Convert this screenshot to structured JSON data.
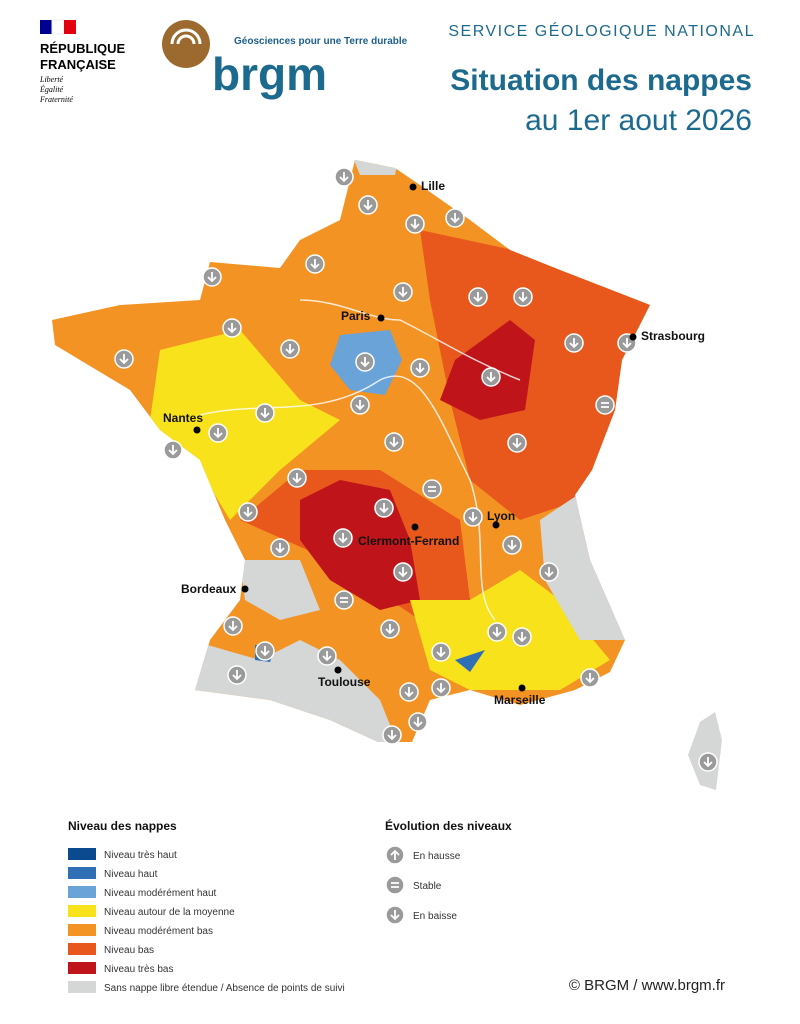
{
  "header": {
    "republic": [
      "RÉPUBLIQUE",
      "FRANÇAISE"
    ],
    "motto": [
      "Liberté",
      "Égalité",
      "Fraternité"
    ],
    "tagline": "Géosciences pour une Terre durable",
    "brand": "brgm",
    "service": "SERVICE GÉOLOGIQUE NATIONAL",
    "title": "Situation des nappes",
    "subtitle": "au 1er aout 2026"
  },
  "cities": [
    "Lille",
    "Paris",
    "Strasbourg",
    "Nantes",
    "Lyon",
    "Clermont-Ferrand",
    "Bordeaux",
    "Toulouse",
    "Marseille"
  ],
  "legend_levels": {
    "title": "Niveau des nappes",
    "items": [
      {
        "label": "Niveau très haut",
        "color": "#0b4a8f"
      },
      {
        "label": "Niveau haut",
        "color": "#2f6fb5"
      },
      {
        "label": "Niveau modérément haut",
        "color": "#6aa3d8"
      },
      {
        "label": "Niveau autour de la moyenne",
        "color": "#f7e21b"
      },
      {
        "label": "Niveau modérément bas",
        "color": "#f39323"
      },
      {
        "label": "Niveau bas",
        "color": "#e8581c"
      },
      {
        "label": "Niveau très bas",
        "color": "#c0141b"
      },
      {
        "label": "Sans nappe libre étendue / Absence de points de suivi",
        "color": "#d4d7d6"
      }
    ]
  },
  "legend_trend": {
    "title": "Évolution des niveaux",
    "items": [
      "En hausse",
      "Stable",
      "En baisse"
    ]
  },
  "credit": "© BRGM / www.brgm.fr"
}
